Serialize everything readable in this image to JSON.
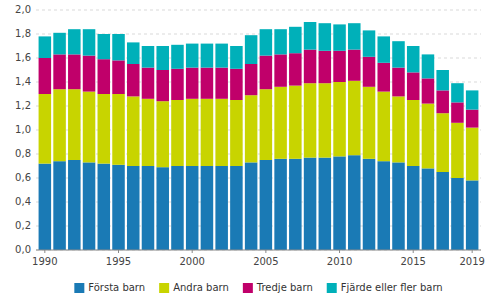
{
  "chart_data": {
    "type": "bar",
    "stacked": true,
    "grid": true,
    "legend": "bottom",
    "x": [
      1990,
      1991,
      1992,
      1993,
      1994,
      1995,
      1996,
      1997,
      1998,
      1999,
      2000,
      2001,
      2002,
      2003,
      2004,
      2005,
      2006,
      2007,
      2008,
      2009,
      2010,
      2011,
      2012,
      2013,
      2014,
      2015,
      2016,
      2017,
      2018,
      2019
    ],
    "xlim": [
      1989.4,
      2019.6
    ],
    "xticks": [
      1990,
      1995,
      2000,
      2005,
      2010,
      2015,
      2019
    ],
    "ylim": [
      0.0,
      2.0
    ],
    "yticks": [
      {
        "value": 0.0,
        "label": "0,0"
      },
      {
        "value": 0.2,
        "label": "0,2"
      },
      {
        "value": 0.4,
        "label": "0,4"
      },
      {
        "value": 0.6,
        "label": "0,6"
      },
      {
        "value": 0.8,
        "label": "0,8"
      },
      {
        "value": 1.0,
        "label": "1,0"
      },
      {
        "value": 1.2,
        "label": "1,2"
      },
      {
        "value": 1.4,
        "label": "1,4"
      },
      {
        "value": 1.6,
        "label": "1,6"
      },
      {
        "value": 1.8,
        "label": "1,8"
      },
      {
        "value": 2.0,
        "label": "2,0"
      }
    ],
    "series": [
      {
        "name": "Första barn",
        "color": "#1a7ab5",
        "values": [
          0.72,
          0.74,
          0.75,
          0.73,
          0.72,
          0.71,
          0.7,
          0.7,
          0.69,
          0.7,
          0.7,
          0.7,
          0.7,
          0.7,
          0.73,
          0.75,
          0.76,
          0.76,
          0.77,
          0.77,
          0.78,
          0.79,
          0.76,
          0.74,
          0.73,
          0.7,
          0.68,
          0.65,
          0.6,
          0.58
        ]
      },
      {
        "name": "Andra barn",
        "color": "#c8d400",
        "values": [
          0.58,
          0.6,
          0.59,
          0.59,
          0.58,
          0.59,
          0.58,
          0.56,
          0.55,
          0.55,
          0.56,
          0.56,
          0.56,
          0.55,
          0.56,
          0.59,
          0.6,
          0.61,
          0.62,
          0.62,
          0.62,
          0.62,
          0.6,
          0.58,
          0.55,
          0.55,
          0.54,
          0.49,
          0.46,
          0.44
        ]
      },
      {
        "name": "Tredje barn",
        "color": "#c0006a",
        "values": [
          0.3,
          0.29,
          0.29,
          0.3,
          0.29,
          0.28,
          0.27,
          0.26,
          0.26,
          0.26,
          0.26,
          0.26,
          0.26,
          0.26,
          0.26,
          0.28,
          0.27,
          0.27,
          0.28,
          0.27,
          0.26,
          0.26,
          0.25,
          0.24,
          0.24,
          0.23,
          0.21,
          0.19,
          0.17,
          0.15
        ]
      },
      {
        "name": "Fjärde eller fler barn",
        "color": "#00b0b9",
        "values": [
          0.18,
          0.18,
          0.21,
          0.22,
          0.21,
          0.22,
          0.18,
          0.18,
          0.2,
          0.2,
          0.2,
          0.2,
          0.2,
          0.19,
          0.24,
          0.22,
          0.21,
          0.22,
          0.23,
          0.23,
          0.22,
          0.22,
          0.22,
          0.22,
          0.22,
          0.22,
          0.2,
          0.17,
          0.16,
          0.16
        ]
      }
    ]
  }
}
